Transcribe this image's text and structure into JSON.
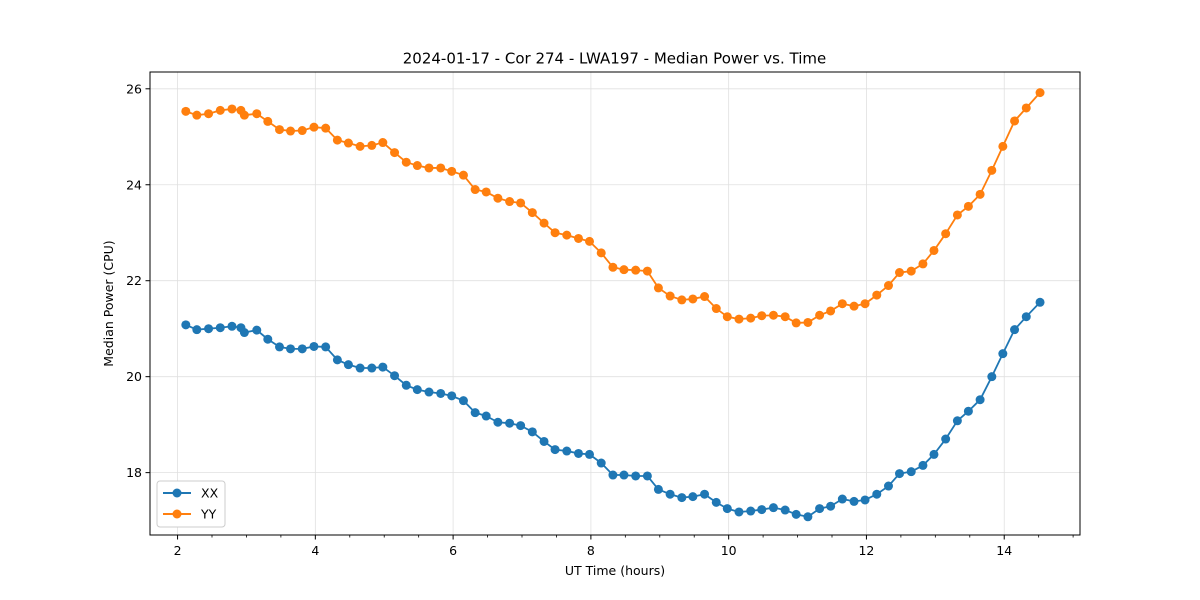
{
  "chart_data": {
    "type": "line",
    "title": "2024-01-17 - Cor 274 - LWA197 - Median Power vs. Time",
    "xlabel": "UT Time (hours)",
    "ylabel": "Median Power (CPU)",
    "xlim": [
      1.6,
      15.1
    ],
    "ylim": [
      16.7,
      26.35
    ],
    "xticks": [
      2,
      4,
      6,
      8,
      10,
      12,
      14
    ],
    "yticks": [
      18,
      20,
      22,
      24,
      26
    ],
    "grid": true,
    "legend_position": "lower-left",
    "marker": "circle",
    "x": [
      2.12,
      2.28,
      2.45,
      2.62,
      2.79,
      2.92,
      2.97,
      3.15,
      3.31,
      3.48,
      3.64,
      3.81,
      3.98,
      4.15,
      4.32,
      4.48,
      4.65,
      4.82,
      4.98,
      5.15,
      5.32,
      5.48,
      5.65,
      5.82,
      5.98,
      6.15,
      6.32,
      6.48,
      6.65,
      6.82,
      6.98,
      7.15,
      7.32,
      7.48,
      7.65,
      7.82,
      7.98,
      8.15,
      8.32,
      8.48,
      8.65,
      8.82,
      8.98,
      9.15,
      9.32,
      9.48,
      9.65,
      9.82,
      9.98,
      10.15,
      10.32,
      10.48,
      10.65,
      10.82,
      10.98,
      11.15,
      11.32,
      11.48,
      11.65,
      11.82,
      11.98,
      12.15,
      12.32,
      12.48,
      12.65,
      12.82,
      12.98,
      13.15,
      13.32,
      13.48,
      13.65,
      13.82,
      13.98,
      14.15,
      14.32,
      14.52
    ],
    "series": [
      {
        "name": "XX",
        "color": "#1f77b4",
        "values": [
          21.08,
          20.98,
          21.0,
          21.02,
          21.05,
          21.02,
          20.92,
          20.97,
          20.78,
          20.62,
          20.58,
          20.58,
          20.63,
          20.62,
          20.35,
          20.25,
          20.18,
          20.18,
          20.2,
          20.02,
          19.82,
          19.73,
          19.68,
          19.65,
          19.6,
          19.5,
          19.25,
          19.18,
          19.05,
          19.03,
          18.98,
          18.85,
          18.65,
          18.48,
          18.45,
          18.4,
          18.38,
          18.2,
          17.95,
          17.95,
          17.93,
          17.93,
          17.65,
          17.55,
          17.48,
          17.5,
          17.55,
          17.38,
          17.25,
          17.18,
          17.2,
          17.23,
          17.27,
          17.22,
          17.13,
          17.08,
          17.25,
          17.3,
          17.45,
          17.4,
          17.43,
          17.55,
          17.72,
          17.98,
          18.02,
          18.15,
          18.38,
          18.7,
          19.08,
          19.28,
          19.52,
          20.0,
          20.48,
          20.98,
          21.25,
          21.55
        ]
      },
      {
        "name": "YY",
        "color": "#ff7f0e",
        "values": [
          25.53,
          25.45,
          25.48,
          25.55,
          25.58,
          25.55,
          25.45,
          25.48,
          25.32,
          25.15,
          25.12,
          25.13,
          25.2,
          25.18,
          24.93,
          24.87,
          24.8,
          24.82,
          24.88,
          24.67,
          24.47,
          24.4,
          24.35,
          24.35,
          24.28,
          24.2,
          23.9,
          23.85,
          23.72,
          23.65,
          23.62,
          23.42,
          23.2,
          23.0,
          22.95,
          22.88,
          22.82,
          22.58,
          22.28,
          22.23,
          22.22,
          22.2,
          21.85,
          21.68,
          21.6,
          21.62,
          21.67,
          21.42,
          21.25,
          21.2,
          21.22,
          21.27,
          21.28,
          21.25,
          21.12,
          21.13,
          21.28,
          21.37,
          21.52,
          21.47,
          21.52,
          21.7,
          21.9,
          22.17,
          22.2,
          22.35,
          22.63,
          22.98,
          23.37,
          23.55,
          23.8,
          24.3,
          24.8,
          25.33,
          25.6,
          25.92
        ]
      }
    ]
  }
}
